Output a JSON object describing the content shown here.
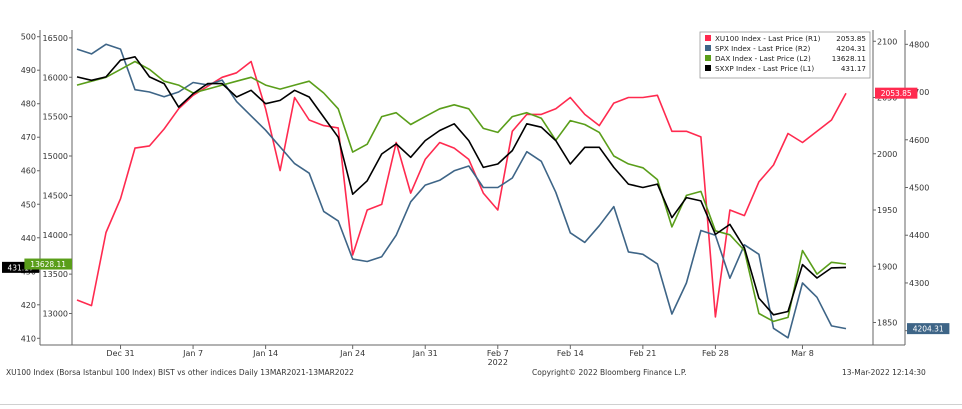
{
  "chart_data": {
    "type": "line",
    "x_dates": [
      "2021-12-28",
      "2021-12-29",
      "2021-12-30",
      "2021-12-31",
      "2022-01-03",
      "2022-01-04",
      "2022-01-05",
      "2022-01-06",
      "2022-01-07",
      "2022-01-10",
      "2022-01-11",
      "2022-01-12",
      "2022-01-13",
      "2022-01-14",
      "2022-01-17",
      "2022-01-18",
      "2022-01-19",
      "2022-01-20",
      "2022-01-21",
      "2022-01-24",
      "2022-01-25",
      "2022-01-26",
      "2022-01-27",
      "2022-01-28",
      "2022-01-31",
      "2022-02-01",
      "2022-02-02",
      "2022-02-03",
      "2022-02-04",
      "2022-02-07",
      "2022-02-08",
      "2022-02-09",
      "2022-02-10",
      "2022-02-11",
      "2022-02-14",
      "2022-02-15",
      "2022-02-16",
      "2022-02-17",
      "2022-02-18",
      "2022-02-21",
      "2022-02-22",
      "2022-02-23",
      "2022-02-24",
      "2022-02-25",
      "2022-02-28",
      "2022-03-01",
      "2022-03-02",
      "2022-03-03",
      "2022-03-04",
      "2022-03-07",
      "2022-03-08",
      "2022-03-09",
      "2022-03-10",
      "2022-03-11"
    ],
    "x_ticks": [
      {
        "label": "Dec 31",
        "date": "2021-12-31"
      },
      {
        "label": "Jan 7",
        "date": "2022-01-07"
      },
      {
        "label": "Jan 14",
        "date": "2022-01-14"
      },
      {
        "label": "Jan 24",
        "date": "2022-01-24"
      },
      {
        "label": "Jan 31",
        "date": "2022-01-31"
      },
      {
        "label": "Feb 7",
        "date": "2022-02-07"
      },
      {
        "label": "Feb 14",
        "date": "2022-02-14"
      },
      {
        "label": "Feb 21",
        "date": "2022-02-21"
      },
      {
        "label": "Feb 28",
        "date": "2022-02-28"
      },
      {
        "label": "Mar 8",
        "date": "2022-03-08"
      }
    ],
    "x_year_label": "2022",
    "axes": {
      "L1": {
        "side": "left-outer",
        "min": 408,
        "max": 502,
        "ticks": [
          500,
          490,
          480,
          470,
          460,
          450,
          440,
          430,
          420,
          410
        ]
      },
      "L2": {
        "side": "left-inner",
        "min": 12600,
        "max": 16600,
        "ticks": [
          16500,
          16000,
          15500,
          15000,
          14500,
          14000,
          13500,
          13000
        ]
      },
      "R1": {
        "side": "right-inner",
        "min": 1830,
        "max": 2110,
        "ticks": [
          2100,
          2050,
          2000,
          1950,
          1900,
          1850
        ]
      },
      "R2": {
        "side": "right-outer",
        "min": 4170,
        "max": 4830,
        "ticks": [
          4800,
          4700,
          4600,
          4500,
          4400,
          4300,
          4200
        ]
      }
    },
    "series": [
      {
        "name": "XU100 Index - Last Price (R1)",
        "legend_value": "2053.85",
        "axis": "R1",
        "color": "#ff2a4f",
        "values": [
          1870,
          1865,
          1930,
          1960,
          2005,
          2007,
          2022,
          2040,
          2052,
          2060,
          2068,
          2072,
          2082,
          2040,
          1985,
          2050,
          2030,
          2025,
          2023,
          1910,
          1950,
          1955,
          2010,
          1965,
          1995,
          2010,
          2005,
          1995,
          1965,
          1950,
          2020,
          2035,
          2035,
          2040,
          2050,
          2035,
          2025,
          2045,
          2050,
          2050,
          2052,
          2020,
          2020,
          2015,
          1855,
          1950,
          1945,
          1975,
          1990,
          2018,
          2010,
          2020,
          2030,
          2053.85
        ]
      },
      {
        "name": "SPX Index - Last Price (R2)",
        "legend_value": "4204.31",
        "axis": "R2",
        "color": "#3e6587",
        "values": [
          4790,
          4780,
          4800,
          4790,
          4705,
          4700,
          4690,
          4700,
          4720,
          4715,
          4725,
          4680,
          4650,
          4620,
          4585,
          4550,
          4530,
          4450,
          4430,
          4350,
          4345,
          4355,
          4400,
          4470,
          4505,
          4515,
          4535,
          4545,
          4500,
          4500,
          4520,
          4575,
          4555,
          4490,
          4405,
          4385,
          4420,
          4460,
          4365,
          4360,
          4340,
          4235,
          4300,
          4410,
          4400,
          4310,
          4380,
          4360,
          4205,
          4185,
          4300,
          4270,
          4210,
          4204.31
        ]
      },
      {
        "name": "DAX Index - Last Price (L2)",
        "legend_value": "13628.11",
        "axis": "L2",
        "color": "#5a9e1a",
        "values": [
          15900,
          15950,
          16000,
          16100,
          16200,
          16100,
          15950,
          15900,
          15800,
          15850,
          15900,
          15950,
          16000,
          15900,
          15850,
          15900,
          15950,
          15800,
          15600,
          15050,
          15150,
          15500,
          15550,
          15400,
          15500,
          15600,
          15650,
          15600,
          15350,
          15300,
          15500,
          15550,
          15480,
          15200,
          15450,
          15400,
          15300,
          15000,
          14900,
          14850,
          14700,
          14100,
          14500,
          14550,
          14050,
          14000,
          13800,
          13000,
          12900,
          12950,
          13800,
          13500,
          13650,
          13628.11
        ]
      },
      {
        "name": "SXXP Index - Last Price (L1)",
        "legend_value": "431.17",
        "axis": "L1",
        "color": "#000000",
        "values": [
          488,
          487,
          488,
          493,
          494,
          488,
          486,
          479,
          483,
          486,
          486,
          482,
          484,
          480,
          481,
          484,
          482,
          476,
          470,
          453,
          457,
          465,
          468,
          464,
          469,
          472,
          474,
          469,
          461,
          462,
          466,
          474,
          473,
          469,
          462,
          467,
          467,
          461,
          456,
          455,
          456,
          446,
          452,
          451,
          441,
          444,
          437,
          422,
          417,
          418,
          432,
          428,
          431,
          431.17
        ]
      }
    ],
    "value_tags": [
      {
        "axis": "L1",
        "text": "431.17",
        "value": 431.17,
        "bg": "#000000",
        "fg": "#ffffff"
      },
      {
        "axis": "L2",
        "text": "13628.11",
        "value": 13628.11,
        "bg": "#5a9e1a",
        "fg": "#ffffff"
      },
      {
        "axis": "R1",
        "text": "2053.85",
        "value": 2053.85,
        "bg": "#ff2a4f",
        "fg": "#ffffff"
      },
      {
        "axis": "R2",
        "text": "4204.31",
        "value": 4204.31,
        "bg": "#3e6587",
        "fg": "#ffffff"
      }
    ],
    "legend_position": "top-right",
    "grid": false
  },
  "footer": {
    "left": "XU100 Index (Borsa Istanbul 100 Index) BIST vs other indices  Daily 13MAR2021-13MAR2022",
    "center": "Copyright© 2022 Bloomberg Finance L.P.",
    "right": "13-Mar-2022 12:14:30"
  }
}
